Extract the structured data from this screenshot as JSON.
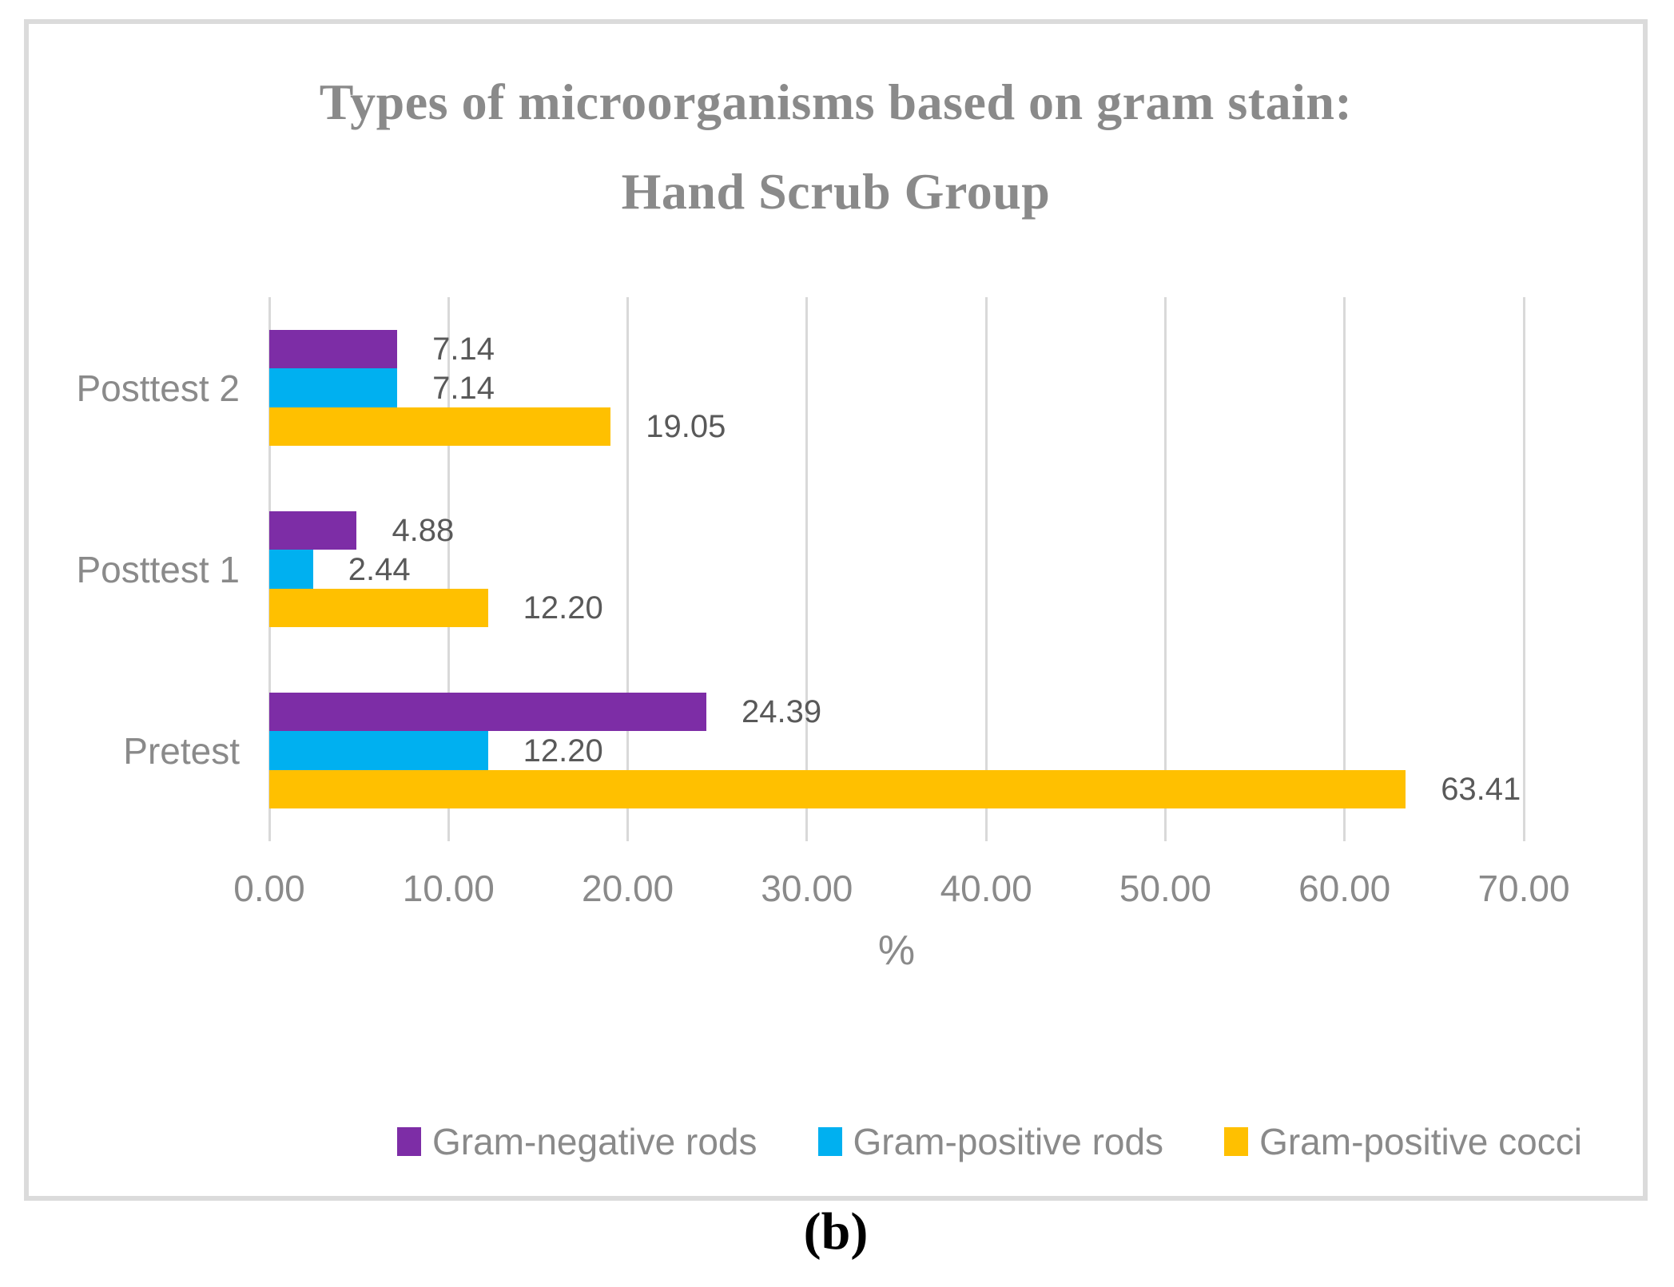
{
  "figure": {
    "title_line1": "Types of microorganisms based on gram stain:",
    "title_line2": "Hand Scrub Group",
    "caption": "(b)"
  },
  "chart_data": {
    "type": "bar",
    "orientation": "horizontal",
    "title": "Types of microorganisms based on gram stain: Hand Scrub Group",
    "categories": [
      "Posttest 2",
      "Posttest 1",
      "Pretest"
    ],
    "series": [
      {
        "name": "Gram-negative rods",
        "color": "#7D2DA6",
        "values": [
          7.14,
          4.88,
          24.39
        ],
        "labels": [
          "7.14",
          "4.88",
          "24.39"
        ]
      },
      {
        "name": "Gram-positive rods",
        "color": "#00B0F0",
        "values": [
          7.14,
          2.44,
          12.2
        ],
        "labels": [
          "7.14",
          "2.44",
          "12.20"
        ]
      },
      {
        "name": "Gram-positive cocci",
        "color": "#FFC000",
        "values": [
          19.05,
          12.2,
          63.41
        ],
        "labels": [
          "19.05",
          "12.20",
          "63.41"
        ]
      }
    ],
    "xlabel": "%",
    "xlim": [
      0,
      70
    ],
    "x_ticks": [
      "0.00",
      "10.00",
      "20.00",
      "30.00",
      "40.00",
      "50.00",
      "60.00",
      "70.00"
    ],
    "x_tick_values": [
      0,
      10,
      20,
      30,
      40,
      50,
      60,
      70
    ],
    "grid": true,
    "legend_position": "bottom",
    "value_label_position": "outside-end"
  },
  "colors": {
    "grid": "#D9D9D9",
    "frame_border": "#DBDBDB",
    "title_text": "#8A8A8A",
    "axis_text": "#8A8A8A",
    "data_label_text": "#595959",
    "caption_text": "#000000"
  }
}
